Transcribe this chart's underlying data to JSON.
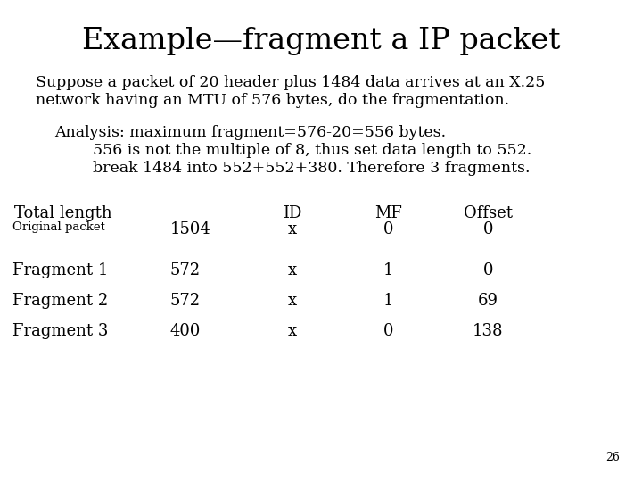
{
  "title": "Example—fragment a IP packet",
  "background_color": "#ffffff",
  "text_color": "#000000",
  "title_fontsize": 24,
  "body_fontsize": 12.5,
  "table_fontsize": 13,
  "small_fontsize": 9.5,
  "page_fontsize": 9,
  "paragraph1_line1": "Suppose a packet of 20 header plus 1484 data arrives at an X.25",
  "paragraph1_line2": "network having an MTU of 576 bytes, do the fragmentation.",
  "paragraph2_line1": "Analysis: maximum fragment=576-20=556 bytes.",
  "paragraph2_line2": "556 is not the multiple of 8, thus set data length to 552.",
  "paragraph2_line3": "break 1484 into 552+552+380. Therefore 3 fragments.",
  "col_header_label": "Total length",
  "col_headers": [
    "ID",
    "MF",
    "Offset"
  ],
  "row_label_small": "Original packet",
  "rows": [
    {
      "label": "",
      "length": "1504",
      "id": "x",
      "mf": "0",
      "offset": "0"
    },
    {
      "label": "Fragment 1",
      "length": "572",
      "id": "x",
      "mf": "1",
      "offset": "0"
    },
    {
      "label": "Fragment 2",
      "length": "572",
      "id": "x",
      "mf": "1",
      "offset": "69"
    },
    {
      "label": "Fragment 3",
      "length": "400",
      "id": "x",
      "mf": "0",
      "offset": "138"
    }
  ],
  "page_number": "26",
  "font_family": "serif"
}
